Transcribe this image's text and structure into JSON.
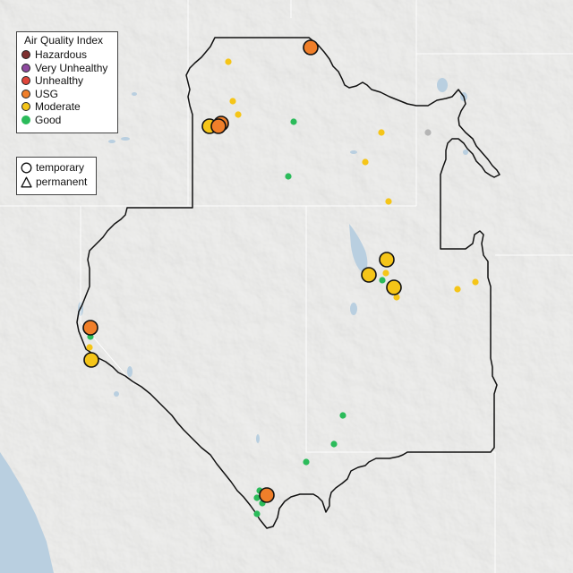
{
  "legend": {
    "title": "Air Quality Index",
    "categories": [
      {
        "label": "Hazardous",
        "color": "#7e3030"
      },
      {
        "label": "Very Unhealthy",
        "color": "#8e4aa0"
      },
      {
        "label": "Unhealthy",
        "color": "#e0463b"
      },
      {
        "label": "USG",
        "color": "#f07f2a"
      },
      {
        "label": "Moderate",
        "color": "#f5c518"
      },
      {
        "label": "Good",
        "color": "#2bbb5a"
      }
    ]
  },
  "monitor_types": {
    "temporary": "temporary",
    "permanent": "permanent"
  },
  "map": {
    "base_color": "#dcdcda",
    "water_color": "#b9cfe0",
    "region_border_color": "#111111"
  }
}
